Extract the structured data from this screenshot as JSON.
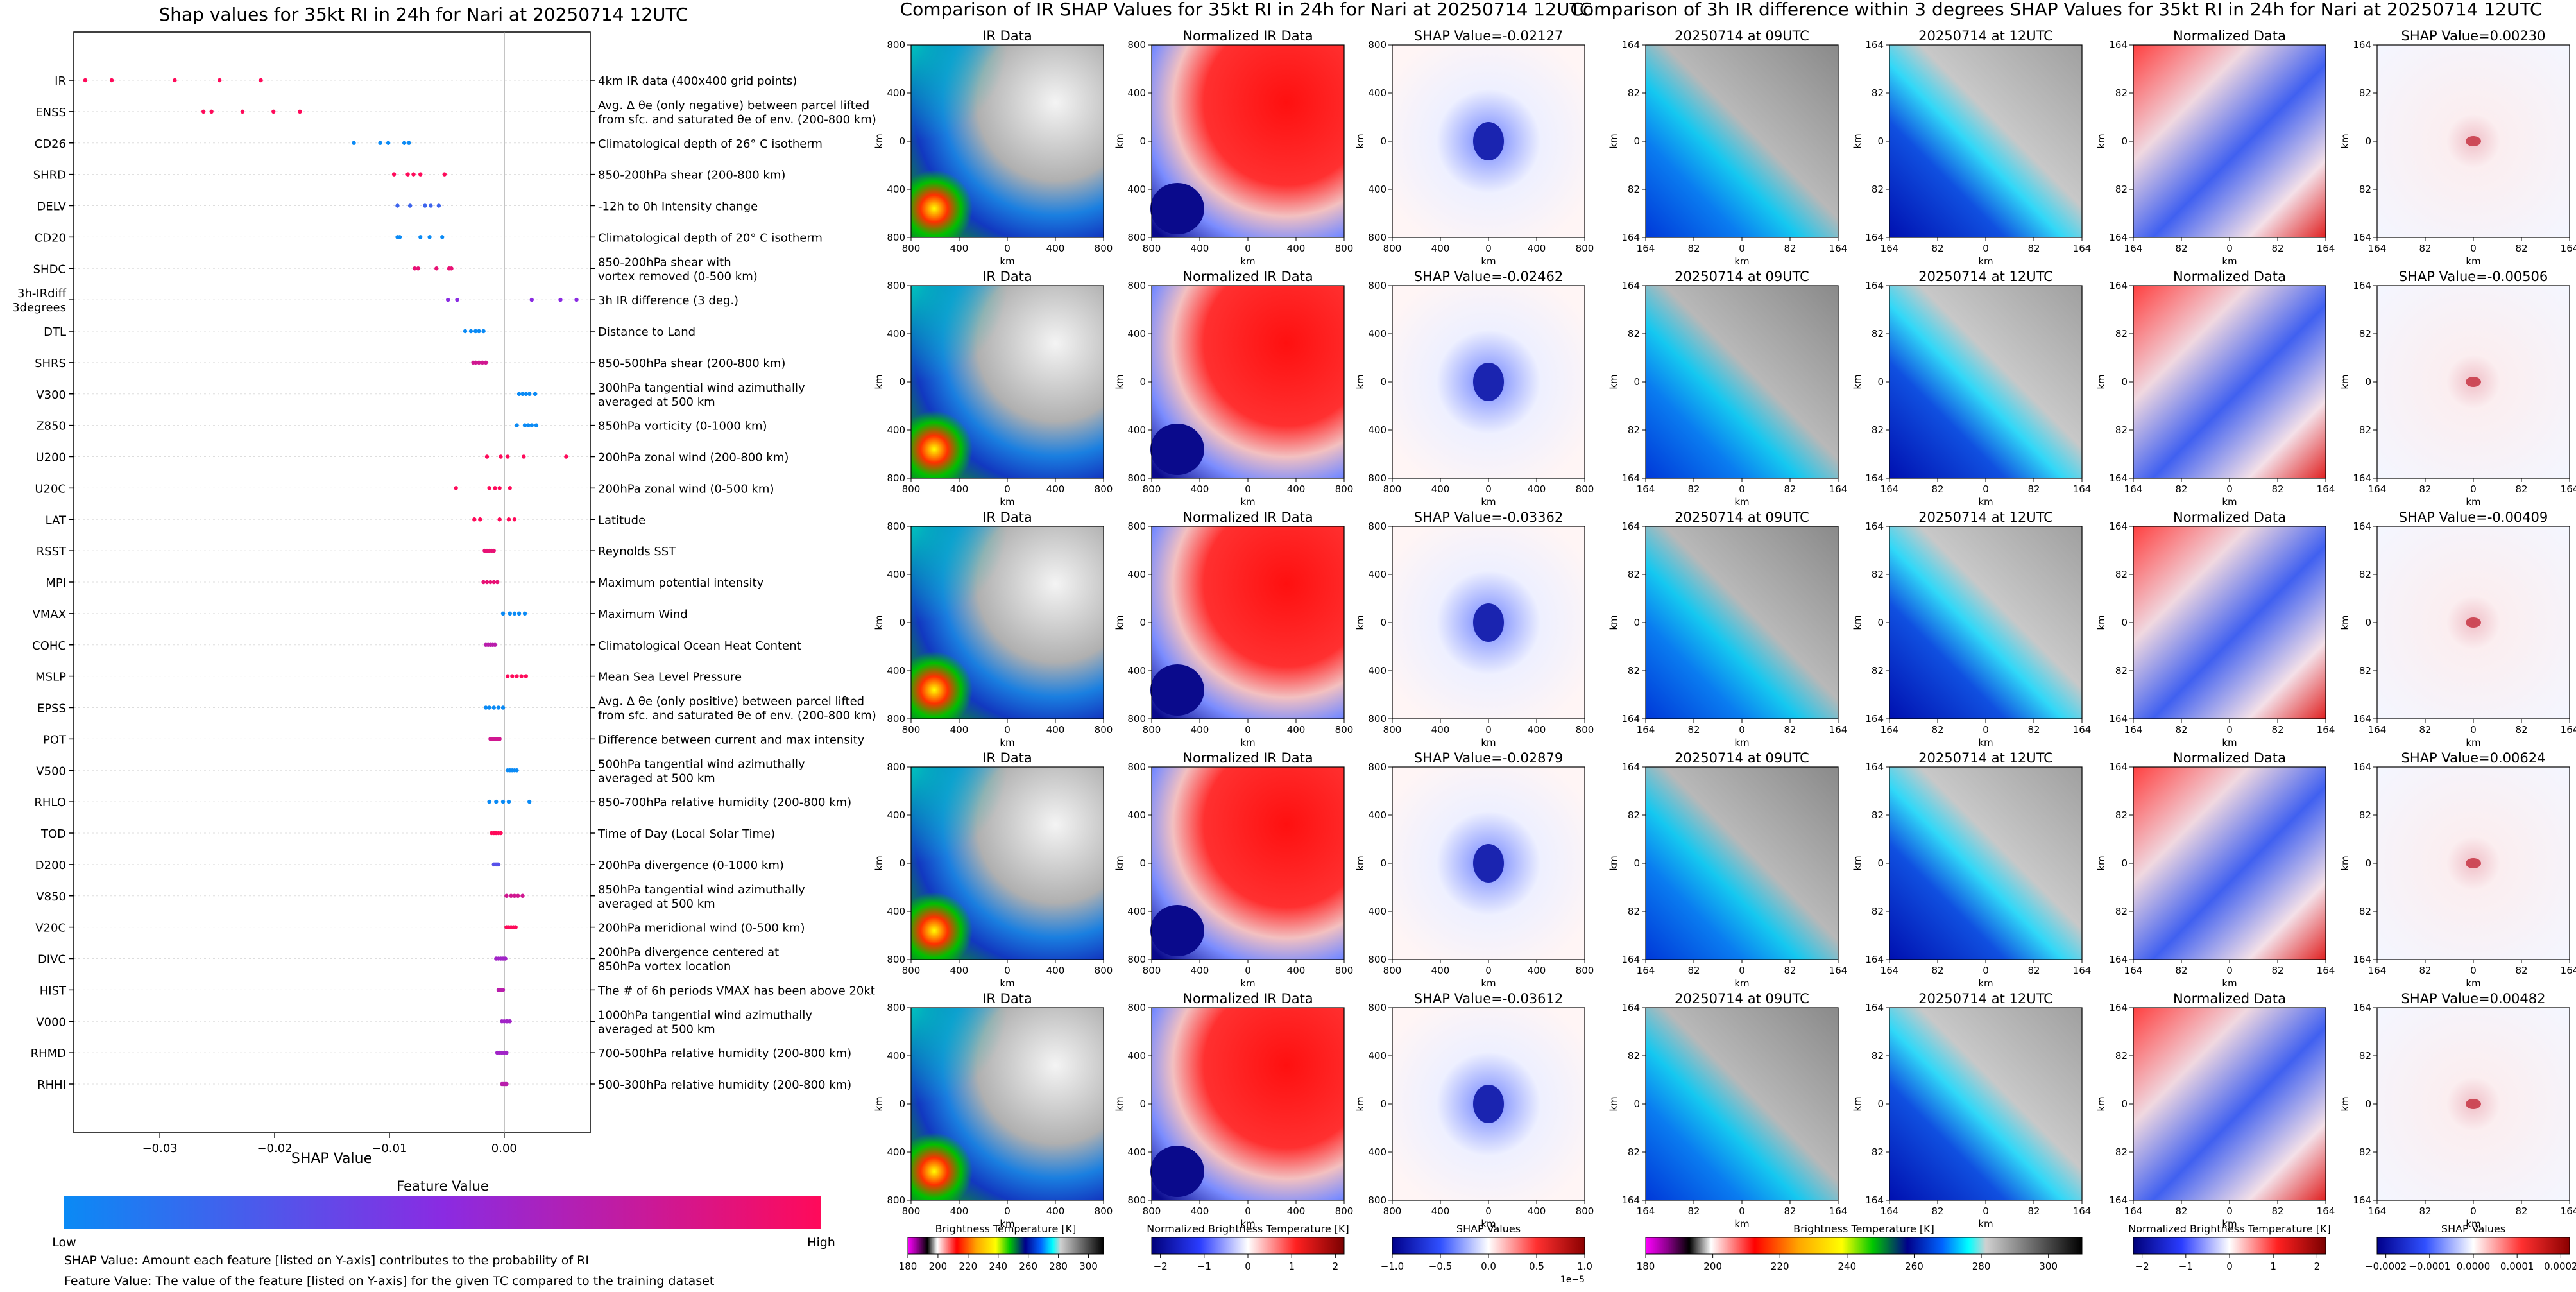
{
  "colors": {
    "feature_low": "#0a8af5",
    "feature_mid": "#8a2be2",
    "feature_high": "#ff0a5a",
    "gridline": "#dddddd",
    "axis": "#000000",
    "zero_line": "#999999"
  },
  "chart_data": [
    {
      "type": "scatter",
      "title": "Shap values for 35kt RI in 24h for Nari at 20250714 12UTC",
      "xlabel": "SHAP Value",
      "ylabel": "",
      "xlim": [
        -0.0375,
        0.0075
      ],
      "xticks": [
        {
          "value": -0.03,
          "label": "−0.03"
        },
        {
          "value": -0.02,
          "label": "−0.02"
        },
        {
          "value": -0.01,
          "label": "−0.01"
        },
        {
          "value": 0.0,
          "label": "0.00"
        }
      ],
      "colorbar": {
        "title": "Feature Value",
        "low_label": "Low",
        "high_label": "High"
      },
      "footnotes": [
        "SHAP Value: Amount each feature [listed on Y-axis] contributes to the probability of RI",
        "Feature Value: The value of the feature [listed on Y-axis] for the given TC compared to the training dataset"
      ],
      "features": [
        {
          "name": "IR",
          "description": [
            "4km IR data (400x400 grid points)"
          ],
          "shap": [
            -0.0365,
            -0.0342,
            -0.0287,
            -0.0248,
            -0.0212
          ],
          "fv": [
            1,
            1,
            1,
            1,
            1
          ]
        },
        {
          "name": "ENSS",
          "description": [
            "Avg. Δ θe (only negative) between parcel lifted",
            "from sfc. and saturated θe of env. (200-800 km)"
          ],
          "shap": [
            -0.0262,
            -0.0255,
            -0.0228,
            -0.0201,
            -0.0178
          ],
          "fv": [
            1,
            1,
            1,
            1,
            1
          ]
        },
        {
          "name": "CD26",
          "description": [
            "Climatological depth of 26° C isotherm"
          ],
          "shap": [
            -0.0131,
            -0.0108,
            -0.0101,
            -0.0087,
            -0.0083
          ],
          "fv": [
            0,
            0,
            0,
            0,
            0
          ]
        },
        {
          "name": "SHRD",
          "description": [
            "850-200hPa shear (200-800 km)"
          ],
          "shap": [
            -0.0096,
            -0.0084,
            -0.0079,
            -0.0073,
            -0.0052
          ],
          "fv": [
            1,
            1,
            1,
            1,
            1
          ]
        },
        {
          "name": "DELV",
          "description": [
            "-12h to 0h Intensity change"
          ],
          "shap": [
            -0.0093,
            -0.0082,
            -0.0069,
            -0.0064,
            -0.0057
          ],
          "fv": [
            0.2,
            0.2,
            0.2,
            0.2,
            0.2
          ]
        },
        {
          "name": "CD20",
          "description": [
            "Climatological depth of 20° C isotherm"
          ],
          "shap": [
            -0.0093,
            -0.0091,
            -0.0073,
            -0.0065,
            -0.0054
          ],
          "fv": [
            0,
            0,
            0,
            0,
            0
          ]
        },
        {
          "name": "SHDC",
          "description": [
            "850-200hPa shear with",
            "vortex removed (0-500 km)"
          ],
          "shap": [
            -0.0078,
            -0.0075,
            -0.0059,
            -0.0048,
            -0.0046
          ],
          "fv": [
            0.9,
            0.9,
            0.9,
            0.9,
            0.9
          ]
        },
        {
          "name": "3h-IRdiff\n3degrees",
          "description": [
            "3h IR difference (3 deg.)"
          ],
          "shap": [
            -0.0049,
            -0.0041,
            0.0024,
            0.0049,
            0.0063
          ],
          "fv": [
            0.5,
            0.5,
            0.5,
            0.5,
            0.5
          ]
        },
        {
          "name": "DTL",
          "description": [
            "Distance to Land"
          ],
          "shap": [
            -0.0034,
            -0.0029,
            -0.0025,
            -0.0022,
            -0.0018
          ],
          "fv": [
            0,
            0,
            0,
            0,
            0
          ]
        },
        {
          "name": "SHRS",
          "description": [
            "850-500hPa shear (200-800 km)"
          ],
          "shap": [
            -0.0027,
            -0.0025,
            -0.0022,
            -0.0019,
            -0.0016
          ],
          "fv": [
            0.8,
            0.8,
            0.8,
            0.8,
            0.8
          ]
        },
        {
          "name": "V300",
          "description": [
            "300hPa tangential wind azimuthally",
            "averaged at 500 km"
          ],
          "shap": [
            0.0013,
            0.0016,
            0.0019,
            0.0022,
            0.0027
          ],
          "fv": [
            0,
            0,
            0,
            0,
            0
          ]
        },
        {
          "name": "Z850",
          "description": [
            "850hPa vorticity (0-1000 km)"
          ],
          "shap": [
            0.0011,
            0.0018,
            0.0021,
            0.0024,
            0.0028
          ],
          "fv": [
            0,
            0,
            0,
            0,
            0
          ]
        },
        {
          "name": "U200",
          "description": [
            "200hPa zonal wind (200-800 km)"
          ],
          "shap": [
            -0.0015,
            -0.0003,
            0.0003,
            0.0017,
            0.0054
          ],
          "fv": [
            1,
            1,
            1,
            1,
            1
          ]
        },
        {
          "name": "U20C",
          "description": [
            "200hPa zonal wind (0-500 km)"
          ],
          "shap": [
            -0.0042,
            -0.0013,
            -0.0008,
            -0.0004,
            0.0005
          ],
          "fv": [
            1,
            1,
            1,
            1,
            1
          ]
        },
        {
          "name": "LAT",
          "description": [
            "Latitude"
          ],
          "shap": [
            -0.0026,
            -0.0021,
            -0.0004,
            0.0004,
            0.0009
          ],
          "fv": [
            1,
            1,
            1,
            1,
            1
          ]
        },
        {
          "name": "RSST",
          "description": [
            "Reynolds SST"
          ],
          "shap": [
            -0.0017,
            -0.0015,
            -0.0013,
            -0.0011,
            -0.0009
          ],
          "fv": [
            0.9,
            0.9,
            0.9,
            0.9,
            0.9
          ]
        },
        {
          "name": "MPI",
          "description": [
            "Maximum potential intensity"
          ],
          "shap": [
            -0.0018,
            -0.0015,
            -0.0012,
            -0.0009,
            -0.0006
          ],
          "fv": [
            0.9,
            0.9,
            0.9,
            0.9,
            0.9
          ]
        },
        {
          "name": "VMAX",
          "description": [
            "Maximum Wind"
          ],
          "shap": [
            -0.0001,
            0.0005,
            0.0009,
            0.0013,
            0.0018
          ],
          "fv": [
            0,
            0,
            0,
            0,
            0
          ]
        },
        {
          "name": "COHC",
          "description": [
            "Climatological Ocean Heat Content"
          ],
          "shap": [
            -0.0016,
            -0.0014,
            -0.0012,
            -0.001,
            -0.0008
          ],
          "fv": [
            0.7,
            0.7,
            0.7,
            0.7,
            0.7
          ]
        },
        {
          "name": "MSLP",
          "description": [
            "Mean Sea Level Pressure"
          ],
          "shap": [
            0.0003,
            0.0007,
            0.0011,
            0.0015,
            0.0019
          ],
          "fv": [
            1,
            1,
            1,
            1,
            1
          ]
        },
        {
          "name": "EPSS",
          "description": [
            "Avg. Δ θe (only positive) between parcel lifted",
            "from sfc. and saturated θe of env. (200-800 km)"
          ],
          "shap": [
            -0.0016,
            -0.0013,
            -0.0009,
            -0.0005,
            -0.0001
          ],
          "fv": [
            0,
            0,
            0,
            0,
            0
          ]
        },
        {
          "name": "POT",
          "description": [
            "Difference between current and max intensity"
          ],
          "shap": [
            -0.0012,
            -0.001,
            -0.0008,
            -0.0006,
            -0.0004
          ],
          "fv": [
            0.8,
            0.8,
            0.8,
            0.8,
            0.8
          ]
        },
        {
          "name": "V500",
          "description": [
            "500hPa tangential wind azimuthally",
            "averaged at 500 km"
          ],
          "shap": [
            0.0003,
            0.0005,
            0.0007,
            0.0009,
            0.0011
          ],
          "fv": [
            0,
            0,
            0,
            0,
            0
          ]
        },
        {
          "name": "RHLO",
          "description": [
            "850-700hPa relative humidity (200-800 km)"
          ],
          "shap": [
            -0.0013,
            -0.0007,
            -0.0001,
            0.0004,
            0.0022
          ],
          "fv": [
            0,
            0,
            0,
            0,
            0
          ]
        },
        {
          "name": "TOD",
          "description": [
            "Time of Day (Local Solar Time)"
          ],
          "shap": [
            -0.0011,
            -0.0009,
            -0.0007,
            -0.0005,
            -0.0003
          ],
          "fv": [
            1,
            1,
            1,
            1,
            1
          ]
        },
        {
          "name": "D200",
          "description": [
            "200hPa divergence (0-1000 km)"
          ],
          "shap": [
            -0.0009,
            -0.0008,
            -0.0007,
            -0.0006,
            -0.0005
          ],
          "fv": [
            0.3,
            0.3,
            0.3,
            0.3,
            0.3
          ]
        },
        {
          "name": "V850",
          "description": [
            "850hPa tangential wind azimuthally",
            "averaged at 500 km"
          ],
          "shap": [
            0.0002,
            0.0006,
            0.0009,
            0.0012,
            0.0016
          ],
          "fv": [
            0.8,
            0.8,
            0.8,
            0.8,
            0.8
          ]
        },
        {
          "name": "V20C",
          "description": [
            "200hPa meridional wind (0-500 km)"
          ],
          "shap": [
            0.0002,
            0.0004,
            0.0006,
            0.0008,
            0.001
          ],
          "fv": [
            1,
            1,
            1,
            1,
            1
          ]
        },
        {
          "name": "DIVC",
          "description": [
            "200hPa divergence centered at",
            "850hPa vortex location"
          ],
          "shap": [
            -0.0007,
            -0.0005,
            -0.0003,
            -0.0001,
            0.0001
          ],
          "fv": [
            0.6,
            0.6,
            0.6,
            0.6,
            0.6
          ]
        },
        {
          "name": "HIST",
          "description": [
            "The # of 6h periods VMAX has been above 20kt"
          ],
          "shap": [
            -0.0005,
            -0.0004,
            -0.0003,
            -0.0002,
            -0.0001
          ],
          "fv": [
            0.7,
            0.7,
            0.7,
            0.7,
            0.7
          ]
        },
        {
          "name": "V000",
          "description": [
            "1000hPa tangential wind azimuthally",
            "averaged at 500 km"
          ],
          "shap": [
            -0.0002,
            0.0,
            0.0002,
            0.0003,
            0.0005
          ],
          "fv": [
            0.6,
            0.6,
            0.6,
            0.6,
            0.6
          ]
        },
        {
          "name": "RHMD",
          "description": [
            "700-500hPa relative humidity (200-800 km)"
          ],
          "shap": [
            -0.0006,
            -0.0004,
            -0.0002,
            0.0,
            0.0002
          ],
          "fv": [
            0.6,
            0.6,
            0.6,
            0.6,
            0.6
          ]
        },
        {
          "name": "RHHI",
          "description": [
            "500-300hPa relative humidity (200-800 km)"
          ],
          "shap": [
            -0.0002,
            -0.0001,
            0.0,
            0.0001,
            0.0002
          ],
          "fv": [
            0.7,
            0.7,
            0.7,
            0.7,
            0.7
          ]
        }
      ]
    },
    {
      "type": "heatmap",
      "title": "Comparison of IR SHAP Values for 35kt RI in 24h for Nari at 20250714 12UTC",
      "columns": [
        "IR Data",
        "Normalized IR Data",
        "SHAP Value"
      ],
      "xlabel": "km",
      "ylabel": "km",
      "tick_labels": [
        "800",
        "400",
        "0",
        "400",
        "800"
      ],
      "shap_values": [
        "SHAP Value=-0.02127",
        "SHAP Value=-0.02462",
        "SHAP Value=-0.03362",
        "SHAP Value=-0.02879",
        "SHAP Value=-0.03612"
      ],
      "colorbars": [
        {
          "label": "Brightness Temperature [K]",
          "ticks": [
            "180",
            "200",
            "220",
            "240",
            "260",
            "280",
            "300"
          ],
          "range": [
            180,
            310
          ]
        },
        {
          "label": "Normalized Brightness Temperature [K]",
          "ticks": [
            "−2",
            "−1",
            "0",
            "1",
            "2"
          ],
          "range": [
            -2.2,
            2.2
          ]
        },
        {
          "label": "SHAP Values",
          "ticks": [
            "−1.0",
            "−0.5",
            "0.0",
            "0.5",
            "1.0"
          ],
          "range": [
            -1.0,
            1.0
          ],
          "scale": "1e−5"
        }
      ]
    },
    {
      "type": "heatmap",
      "title": "Comparison of 3h IR difference within 3 degrees SHAP Values for 35kt RI in 24h for Nari at 20250714 12UTC",
      "columns": [
        "20250714 at 09UTC",
        "20250714 at 12UTC",
        "Normalized Data",
        "SHAP Value"
      ],
      "xlabel": "km",
      "ylabel": "km",
      "tick_labels": [
        "164",
        "82",
        "0",
        "82",
        "164"
      ],
      "shap_values": [
        "SHAP Value=0.00230",
        "SHAP Value=-0.00506",
        "SHAP Value=-0.00409",
        "SHAP Value=0.00624",
        "SHAP Value=0.00482"
      ],
      "colorbars": [
        {
          "label": "Brightness Temperature [K]",
          "ticks": [
            "180",
            "200",
            "220",
            "240",
            "260",
            "280",
            "300"
          ],
          "range": [
            180,
            310
          ]
        },
        {
          "label": "Normalized Brightness Temperature [K]",
          "ticks": [
            "−2",
            "−1",
            "0",
            "1",
            "2"
          ],
          "range": [
            -2.2,
            2.2
          ]
        },
        {
          "label": "SHAP Values",
          "ticks": [
            "−0.0002",
            "−0.0001",
            "0.0000",
            "0.0001",
            "0.0002"
          ],
          "range": [
            -0.00022,
            0.00022
          ]
        }
      ]
    }
  ]
}
